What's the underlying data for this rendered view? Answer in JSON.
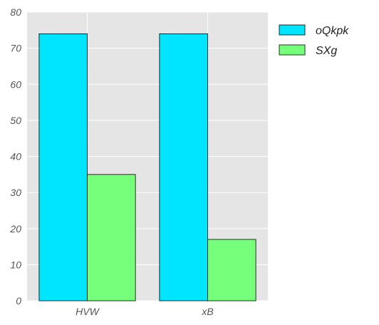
{
  "chart_data": {
    "type": "bar",
    "categories": [
      "HVW",
      "xB"
    ],
    "series": [
      {
        "name": "oQkpk",
        "values": [
          74,
          74
        ],
        "color": "#00e5ff"
      },
      {
        "name": "SXg",
        "values": [
          35,
          17
        ],
        "color": "#76ff7a"
      }
    ],
    "ylim": [
      0,
      80
    ],
    "yticks": [
      0,
      10,
      20,
      30,
      40,
      50,
      60,
      70,
      80
    ],
    "xlabel": "",
    "ylabel": "",
    "title": "",
    "grid": true,
    "legend": "outside-top-right",
    "background": "#e5e5e5"
  }
}
